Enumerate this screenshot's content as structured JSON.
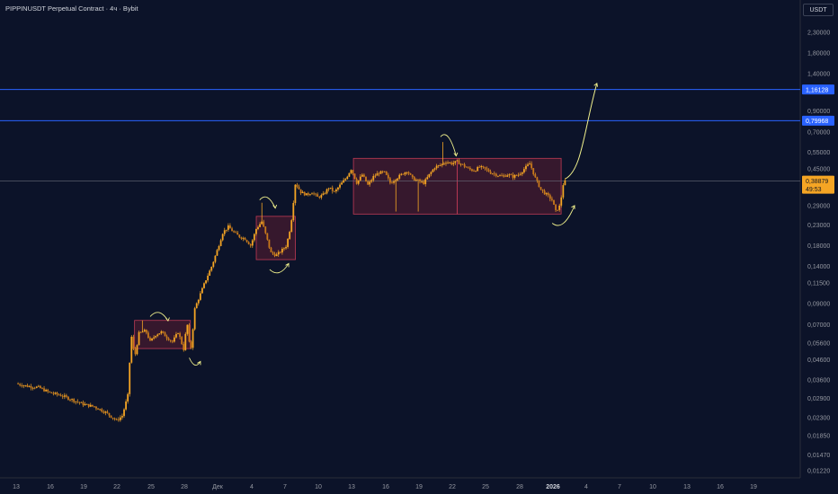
{
  "header": {
    "title": "PIPPINUSDT Perpetual Contract · 4ч · Bybit"
  },
  "currency_button": "USDT",
  "colors": {
    "background": "#0c1329",
    "candle": "#f5a524",
    "zone_fill": "#5a1e32",
    "zone_border": "#c03a55",
    "level_line": "#2962ff",
    "price_label": "#f5a524",
    "annotation": "#f0f08c",
    "axis_text": "#9598a1"
  },
  "chart_data": {
    "type": "candlestick",
    "y_scale": "log",
    "y_ticks": [
      "2,30000",
      "1,80000",
      "1,40000",
      "0,90000",
      "0,70000",
      "0,55000",
      "0,45000",
      "0,29000",
      "0,23000",
      "0,18000",
      "0,14000",
      "0,11500",
      "0,09000",
      "0,07000",
      "0,05600",
      "0,04600",
      "0,03600",
      "0,02900",
      "0,02300",
      "0,01850",
      "0,01470",
      "0,01220"
    ],
    "x_ticks": [
      "13",
      "16",
      "19",
      "22",
      "25",
      "28",
      "Дек",
      "4",
      "7",
      "10",
      "13",
      "16",
      "19",
      "22",
      "25",
      "28",
      "2026",
      "4",
      "7",
      "10",
      "13",
      "16",
      "19"
    ],
    "x_bold_tick": "2026",
    "price_levels": [
      {
        "label": "1,16128",
        "price": 1.16128
      },
      {
        "label": "0,79968",
        "price": 0.79968
      }
    ],
    "current_price": {
      "label": "0,38879",
      "countdown": "49:53",
      "price": 0.38879
    },
    "zones": [
      {
        "price_low": 0.0525,
        "price_high": 0.0735
      },
      {
        "price_low": 0.152,
        "price_high": 0.255
      },
      {
        "price_low": 0.262,
        "price_high": 0.51
      },
      {
        "price_low": 0.262,
        "price_high": 0.51
      }
    ],
    "price_path_anchors": [
      [
        13,
        0.0345
      ],
      [
        14,
        0.0335
      ],
      [
        15,
        0.033
      ],
      [
        16,
        0.031
      ],
      [
        17,
        0.03
      ],
      [
        18,
        0.0285
      ],
      [
        19,
        0.027
      ],
      [
        20,
        0.0262
      ],
      [
        21,
        0.0245
      ],
      [
        22,
        0.0222
      ],
      [
        22.5,
        0.0235
      ],
      [
        23,
        0.03
      ],
      [
        23.3,
        0.062
      ],
      [
        23.6,
        0.047
      ],
      [
        24,
        0.063
      ],
      [
        24.6,
        0.065
      ],
      [
        25,
        0.057
      ],
      [
        25.5,
        0.062
      ],
      [
        26,
        0.064
      ],
      [
        26.5,
        0.06
      ],
      [
        27,
        0.057
      ],
      [
        27.5,
        0.064
      ],
      [
        28,
        0.052
      ],
      [
        28.3,
        0.072
      ],
      [
        28.6,
        0.049
      ],
      [
        29,
        0.085
      ],
      [
        30,
        0.12
      ],
      [
        30.5,
        0.14
      ],
      [
        31,
        0.17
      ],
      [
        31.5,
        0.21
      ],
      [
        32,
        0.225
      ],
      [
        32.5,
        0.21
      ],
      [
        33,
        0.2
      ],
      [
        33.5,
        0.195
      ],
      [
        34,
        0.18
      ],
      [
        34.5,
        0.22
      ],
      [
        35,
        0.24
      ],
      [
        35.4,
        0.2
      ],
      [
        35.8,
        0.165
      ],
      [
        36.3,
        0.16
      ],
      [
        36.8,
        0.17
      ],
      [
        37.2,
        0.18
      ],
      [
        37.6,
        0.23
      ],
      [
        38,
        0.38
      ],
      [
        38.5,
        0.34
      ],
      [
        39,
        0.33
      ],
      [
        39.5,
        0.34
      ],
      [
        40,
        0.32
      ],
      [
        40.5,
        0.33
      ],
      [
        41,
        0.36
      ],
      [
        41.5,
        0.34
      ],
      [
        42,
        0.37
      ],
      [
        42.5,
        0.4
      ],
      [
        43,
        0.45
      ],
      [
        43.5,
        0.38
      ],
      [
        44,
        0.42
      ],
      [
        44.5,
        0.37
      ],
      [
        45,
        0.41
      ],
      [
        45.5,
        0.43
      ],
      [
        46,
        0.43
      ],
      [
        46.5,
        0.38
      ],
      [
        47,
        0.4
      ],
      [
        47.5,
        0.42
      ],
      [
        48,
        0.44
      ],
      [
        48.5,
        0.4
      ],
      [
        49,
        0.39
      ],
      [
        49.5,
        0.38
      ],
      [
        50,
        0.42
      ],
      [
        50.5,
        0.46
      ],
      [
        51,
        0.47
      ],
      [
        51.5,
        0.49
      ],
      [
        52,
        0.48
      ],
      [
        52.5,
        0.49
      ],
      [
        53,
        0.47
      ],
      [
        53.5,
        0.45
      ],
      [
        54,
        0.44
      ],
      [
        54.5,
        0.46
      ],
      [
        55,
        0.45
      ],
      [
        55.5,
        0.43
      ],
      [
        56,
        0.42
      ],
      [
        56.5,
        0.41
      ],
      [
        57,
        0.42
      ],
      [
        57.5,
        0.41
      ],
      [
        58,
        0.42
      ],
      [
        58.5,
        0.45
      ],
      [
        59,
        0.48
      ],
      [
        59.5,
        0.4
      ],
      [
        60,
        0.35
      ],
      [
        60.5,
        0.33
      ],
      [
        61,
        0.31
      ],
      [
        61.3,
        0.27
      ],
      [
        61.7,
        0.29
      ],
      [
        62,
        0.38
      ],
      [
        62.2,
        0.3888
      ]
    ],
    "spikes": [
      {
        "day": 24.3,
        "high": 0.0735
      },
      {
        "day": 35.0,
        "high": 0.3
      },
      {
        "day": 51.2,
        "high": 0.62
      },
      {
        "day": 49.0,
        "low": 0.27
      },
      {
        "day": 47.0,
        "low": 0.27
      }
    ],
    "annotations": [
      {
        "kind": "arc-down",
        "x": [
          25.0,
          26.6
        ],
        "y": [
          0.077,
          0.078
        ]
      },
      {
        "kind": "arc-up",
        "x": [
          28.5,
          29.5
        ],
        "y": [
          0.047,
          0.045
        ]
      },
      {
        "kind": "arc-down",
        "x": [
          34.8,
          36.2
        ],
        "y": [
          0.31,
          0.3
        ]
      },
      {
        "kind": "arc-up",
        "x": [
          35.7,
          37.4
        ],
        "y": [
          0.135,
          0.145
        ]
      },
      {
        "kind": "arc-down",
        "x": [
          51.0,
          52.4
        ],
        "y": [
          0.66,
          0.56
        ]
      },
      {
        "kind": "arc-up",
        "x": [
          61.0,
          63.0
        ],
        "y": [
          0.235,
          0.29
        ]
      },
      {
        "kind": "projection",
        "x": [
          62.2,
          65.0
        ],
        "y": [
          0.4,
          1.25
        ]
      }
    ]
  }
}
